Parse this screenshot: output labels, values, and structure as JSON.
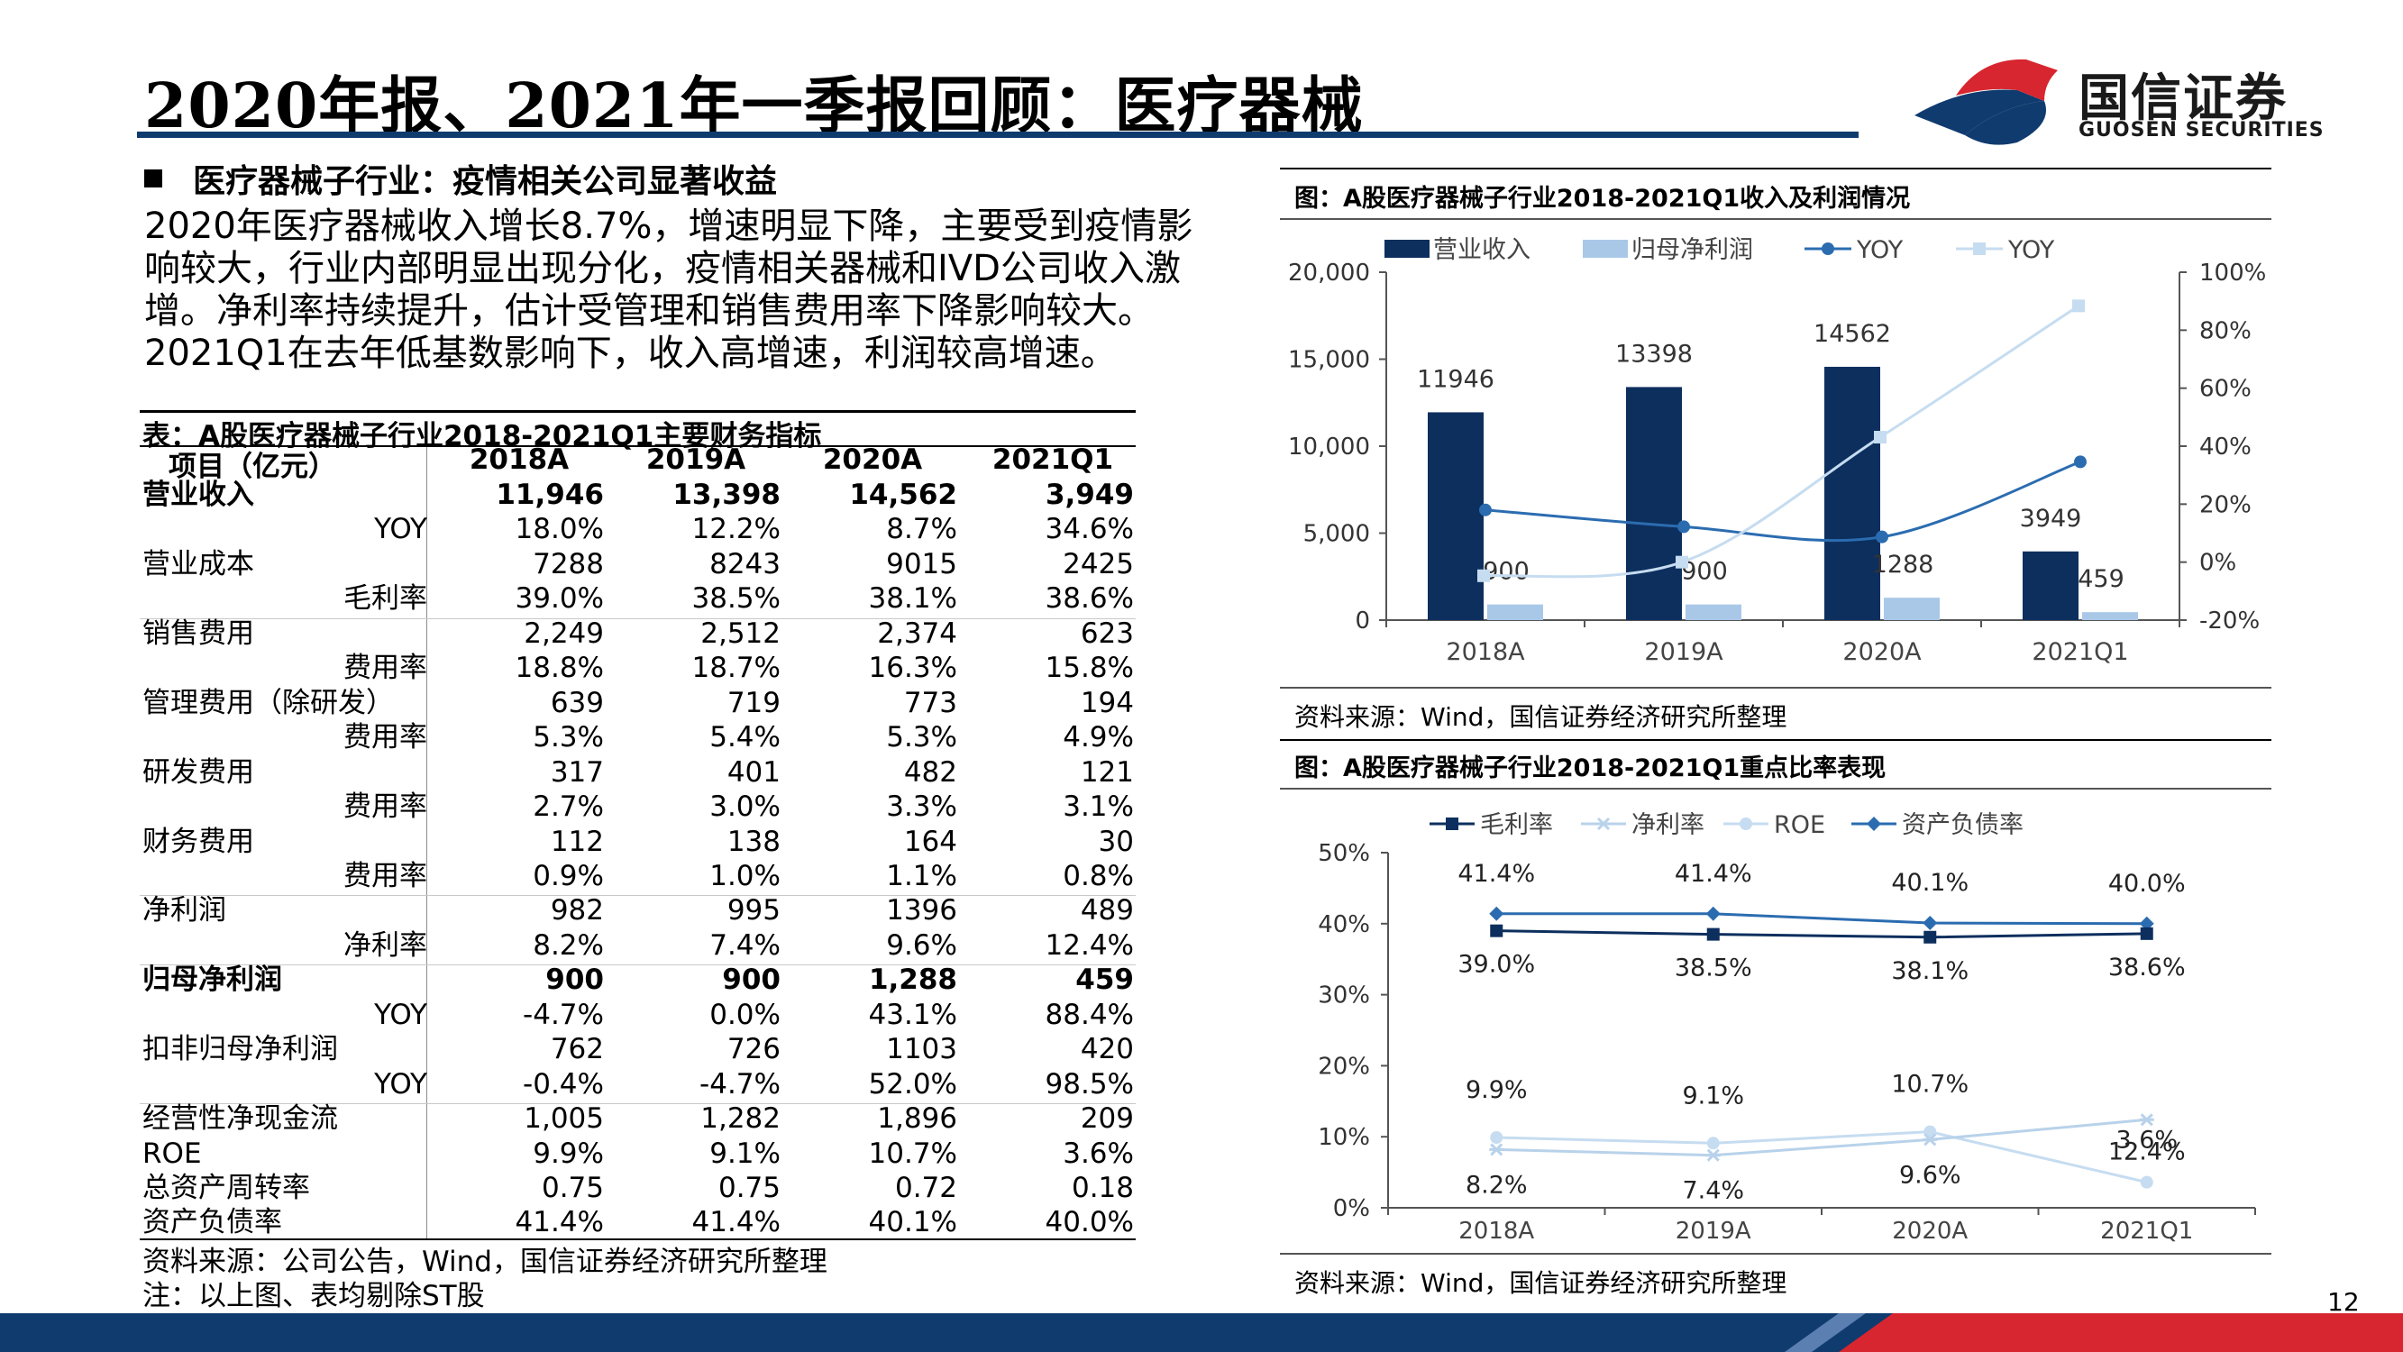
{
  "title": "2020年报、2021年一季报回顾：医疗器械",
  "logo": {
    "name": "国信证券",
    "sub": "GUOSEN SECURITIES"
  },
  "section_heading": "医疗器械子行业：疫情相关公司显著收益",
  "paragraph_lines": [
    "2020年医疗器械收入增长8.7%，增速明显下降，主要受到疫情影",
    "响较大，行业内部明显出现分化，疫情相关器械和IVD公司收入激",
    "增。净利率持续提升，估计受管理和销售费用率下降影响较大。",
    "2021Q1在去年低基数影响下，收入高增速，利润较高增速。"
  ],
  "table": {
    "caption": "表：A股医疗器械子行业2018-2021Q1主要财务指标",
    "headers": [
      "项目（亿元）",
      "2018A",
      "2019A",
      "2020A",
      "2021Q1"
    ],
    "rows": [
      {
        "label": "营业收入",
        "sub": false,
        "bold": true,
        "values": [
          "11,946",
          "13,398",
          "14,562",
          "3,949"
        ]
      },
      {
        "label": "YOY",
        "sub": true,
        "bold": false,
        "values": [
          "18.0%",
          "12.2%",
          "8.7%",
          "34.6%"
        ]
      },
      {
        "label": "营业成本",
        "sub": false,
        "bold": false,
        "values": [
          "7288",
          "8243",
          "9015",
          "2425"
        ]
      },
      {
        "label": "毛利率",
        "sub": true,
        "bold": false,
        "values": [
          "39.0%",
          "38.5%",
          "38.1%",
          "38.6%"
        ]
      },
      {
        "label": "销售费用",
        "sub": false,
        "bold": false,
        "values": [
          "2,249",
          "2,512",
          "2,374",
          "623"
        ]
      },
      {
        "label": "费用率",
        "sub": true,
        "bold": false,
        "values": [
          "18.8%",
          "18.7%",
          "16.3%",
          "15.8%"
        ]
      },
      {
        "label": "管理费用（除研发）",
        "sub": false,
        "bold": false,
        "values": [
          "639",
          "719",
          "773",
          "194"
        ]
      },
      {
        "label": "费用率",
        "sub": true,
        "bold": false,
        "values": [
          "5.3%",
          "5.4%",
          "5.3%",
          "4.9%"
        ]
      },
      {
        "label": "研发费用",
        "sub": false,
        "bold": false,
        "values": [
          "317",
          "401",
          "482",
          "121"
        ]
      },
      {
        "label": "费用率",
        "sub": true,
        "bold": false,
        "values": [
          "2.7%",
          "3.0%",
          "3.3%",
          "3.1%"
        ]
      },
      {
        "label": "财务费用",
        "sub": false,
        "bold": false,
        "values": [
          "112",
          "138",
          "164",
          "30"
        ]
      },
      {
        "label": "费用率",
        "sub": true,
        "bold": false,
        "values": [
          "0.9%",
          "1.0%",
          "1.1%",
          "0.8%"
        ]
      },
      {
        "label": "净利润",
        "sub": false,
        "bold": false,
        "values": [
          "982",
          "995",
          "1396",
          "489"
        ]
      },
      {
        "label": "净利率",
        "sub": true,
        "bold": false,
        "values": [
          "8.2%",
          "7.4%",
          "9.6%",
          "12.4%"
        ]
      },
      {
        "label": "归母净利润",
        "sub": false,
        "bold": true,
        "values": [
          "900",
          "900",
          "1,288",
          "459"
        ]
      },
      {
        "label": "YOY",
        "sub": true,
        "bold": false,
        "values": [
          "-4.7%",
          "0.0%",
          "43.1%",
          "88.4%"
        ]
      },
      {
        "label": "扣非归母净利润",
        "sub": false,
        "bold": false,
        "values": [
          "762",
          "726",
          "1103",
          "420"
        ]
      },
      {
        "label": "YOY",
        "sub": true,
        "bold": false,
        "values": [
          "-0.4%",
          "-4.7%",
          "52.0%",
          "98.5%"
        ]
      },
      {
        "label": "经营性净现金流",
        "sub": false,
        "bold": false,
        "values": [
          "1,005",
          "1,282",
          "1,896",
          "209"
        ]
      },
      {
        "label": "ROE",
        "sub": false,
        "bold": false,
        "values": [
          "9.9%",
          "9.1%",
          "10.7%",
          "3.6%"
        ]
      },
      {
        "label": "总资产周转率",
        "sub": false,
        "bold": false,
        "values": [
          "0.75",
          "0.75",
          "0.72",
          "0.18"
        ]
      },
      {
        "label": "资产负债率",
        "sub": false,
        "bold": false,
        "values": [
          "41.4%",
          "41.4%",
          "40.1%",
          "40.0%"
        ]
      }
    ],
    "source": "资料来源：公司公告，Wind，国信证券经济研究所整理",
    "note": "注：以上图、表均剔除ST股"
  },
  "chart_data": [
    {
      "type": "bar",
      "title": "图：A股医疗器械子行业2018-2021Q1收入及利润情况",
      "categories": [
        "2018A",
        "2019A",
        "2020A",
        "2021Q1"
      ],
      "left_axis": {
        "ylim": [
          0,
          20000
        ],
        "ticks": [
          "0",
          "5,000",
          "10,000",
          "15,000",
          "20,000"
        ]
      },
      "right_axis": {
        "ylim": [
          -20,
          100
        ],
        "ticks": [
          "-20%",
          "0%",
          "20%",
          "40%",
          "60%",
          "80%",
          "100%"
        ]
      },
      "legend_position": "top",
      "series": [
        {
          "name": "营业收入",
          "kind": "bar",
          "axis": "left",
          "color": "#0d2f5e",
          "values": [
            11946,
            13398,
            14562,
            3949
          ],
          "labels": [
            "11946",
            "13398",
            "14562",
            "3949"
          ]
        },
        {
          "name": "归母净利润",
          "kind": "bar",
          "axis": "left",
          "color": "#a9c8e8",
          "values": [
            900,
            900,
            1288,
            459
          ],
          "labels": [
            "900",
            "900",
            "1288",
            "459"
          ]
        },
        {
          "name": "YOY",
          "kind": "line",
          "axis": "right",
          "color": "#2b6cb0",
          "marker": "circle",
          "values": [
            18.0,
            12.2,
            8.7,
            34.6
          ]
        },
        {
          "name": "YOY",
          "kind": "line",
          "axis": "right",
          "color": "#c6dcf0",
          "marker": "square",
          "values": [
            -4.7,
            0.0,
            43.1,
            88.4
          ]
        }
      ],
      "source": "资料来源：Wind，国信证券经济研究所整理"
    },
    {
      "type": "line",
      "title": "图：A股医疗器械子行业2018-2021Q1重点比率表现",
      "categories": [
        "2018A",
        "2019A",
        "2020A",
        "2021Q1"
      ],
      "ylim": [
        0,
        50
      ],
      "ticks": [
        "0%",
        "10%",
        "20%",
        "30%",
        "40%",
        "50%"
      ],
      "legend_position": "top",
      "series": [
        {
          "name": "毛利率",
          "color": "#0d2f5e",
          "marker": "square",
          "values": [
            39.0,
            38.5,
            38.1,
            38.6
          ],
          "labels": [
            "39.0%",
            "38.5%",
            "38.1%",
            "38.6%"
          ]
        },
        {
          "name": "净利率",
          "color": "#b8d2ea",
          "marker": "star",
          "values": [
            8.2,
            7.4,
            9.6,
            12.4
          ],
          "labels": [
            "8.2%",
            "7.4%",
            "9.6%",
            "12.4%"
          ]
        },
        {
          "name": "ROE",
          "color": "#c6dcf0",
          "marker": "circle",
          "values": [
            9.9,
            9.1,
            10.7,
            3.6
          ],
          "labels": [
            "9.9%",
            "9.1%",
            "10.7%",
            "3.6%"
          ]
        },
        {
          "name": "资产负债率",
          "color": "#2b6cb0",
          "marker": "diamond",
          "values": [
            41.4,
            41.4,
            40.1,
            40.0
          ],
          "labels": [
            "41.4%",
            "41.4%",
            "40.1%",
            "40.0%"
          ]
        }
      ],
      "source": "资料来源：Wind，国信证券经济研究所整理"
    }
  ],
  "page_number": "12",
  "colors": {
    "navy": "#0f3b6e",
    "red": "#d7262f"
  }
}
